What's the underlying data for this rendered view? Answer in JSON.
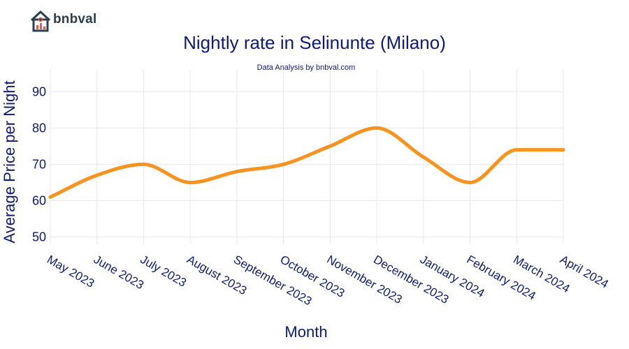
{
  "brand": {
    "name": "bnbval"
  },
  "colors": {
    "line": "#f7931e",
    "text": "#0c1a7a",
    "grid": "#e8e8e8"
  },
  "chart_data": {
    "type": "line",
    "title": "Nightly rate in Selinunte (Milano)",
    "subtitle": "Data Analysis by bnbval.com",
    "xlabel": "Month",
    "ylabel": "Average Price per Night",
    "ylim": [
      48,
      96
    ],
    "yticks": [
      50,
      60,
      70,
      80,
      90
    ],
    "grid": true,
    "categories": [
      "May 2023",
      "June 2023",
      "July 2023",
      "August 2023",
      "September 2023",
      "October 2023",
      "November 2023",
      "December 2023",
      "January 2024",
      "February 2024",
      "March 2024",
      "April 2024"
    ],
    "series": [
      {
        "values": [
          61,
          67,
          70,
          65,
          68,
          70,
          75,
          80,
          72,
          65,
          74,
          74
        ]
      }
    ]
  }
}
